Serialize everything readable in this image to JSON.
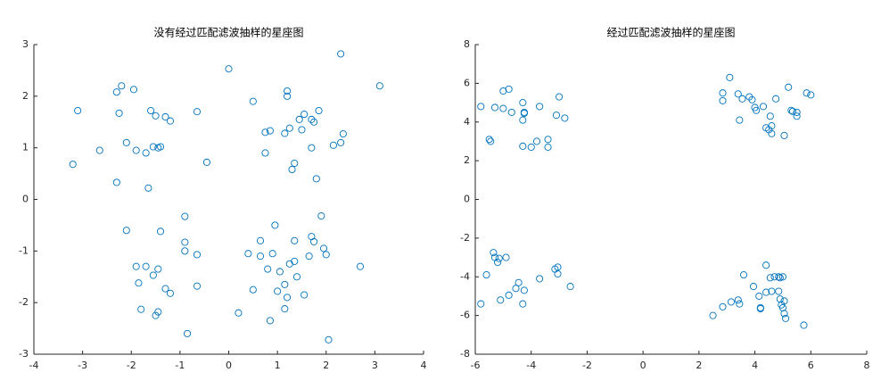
{
  "chart_data": [
    {
      "type": "scatter",
      "title": "没有经过匹配滤波抽样的星座图",
      "color": "#0072bd",
      "x": [
        -3.2,
        -3.1,
        -2.65,
        -2.3,
        -2.2,
        -2.25,
        -2.3,
        -2.1,
        -1.95,
        -1.9,
        -1.7,
        -1.65,
        -1.6,
        -1.55,
        -1.5,
        -1.45,
        -1.4,
        -1.3,
        -1.2,
        -0.65,
        -0.45,
        0.0,
        0.5,
        0.75,
        0.75,
        0.85,
        1.15,
        1.2,
        1.2,
        1.25,
        1.3,
        1.35,
        1.45,
        1.55,
        1.5,
        1.7,
        1.75,
        1.7,
        1.8,
        1.85,
        2.15,
        2.3,
        2.35,
        2.3,
        3.1,
        -2.1,
        -1.9,
        -1.85,
        -1.8,
        -1.7,
        -1.55,
        -1.5,
        -1.45,
        -1.45,
        -1.4,
        -1.3,
        -1.2,
        -0.9,
        -0.9,
        -0.9,
        -0.85,
        -0.65,
        -0.65,
        0.2,
        0.4,
        0.5,
        0.65,
        0.65,
        0.8,
        0.85,
        0.9,
        0.95,
        1.0,
        1.05,
        1.15,
        1.15,
        1.2,
        1.25,
        1.35,
        1.4,
        1.55,
        1.65,
        1.7,
        1.75,
        1.9,
        1.95,
        2.0,
        2.05,
        2.7,
        1.35
      ],
      "values": [
        0.68,
        1.72,
        0.95,
        2.08,
        2.2,
        1.67,
        0.33,
        1.1,
        2.13,
        0.95,
        0.9,
        0.22,
        1.72,
        1.02,
        1.62,
        1.0,
        1.02,
        1.6,
        1.52,
        1.7,
        0.72,
        2.53,
        1.9,
        1.3,
        0.9,
        1.33,
        1.28,
        2.0,
        2.1,
        1.38,
        0.58,
        0.7,
        1.55,
        1.65,
        1.35,
        1.55,
        1.5,
        1.0,
        0.4,
        1.72,
        1.05,
        1.1,
        1.27,
        2.82,
        2.2,
        -0.6,
        -1.3,
        -1.62,
        -2.13,
        -1.3,
        -1.47,
        -2.25,
        -1.35,
        -2.18,
        -0.62,
        -1.73,
        -1.82,
        -0.33,
        -0.83,
        -1.0,
        -2.6,
        -1.07,
        -1.68,
        -2.2,
        -1.05,
        -1.75,
        -0.8,
        -1.1,
        -1.35,
        -2.35,
        -1.05,
        -0.5,
        -1.78,
        -1.4,
        -1.65,
        -2.12,
        -1.9,
        -1.25,
        -0.8,
        -1.5,
        -1.85,
        -1.1,
        -0.72,
        -0.82,
        -0.32,
        -0.95,
        -1.07,
        -2.72,
        -1.3,
        -1.2
      ],
      "xlim": [
        -4,
        4
      ],
      "xticks": [
        -4,
        -3,
        -2,
        -1,
        0,
        1,
        2,
        3,
        4
      ],
      "ylim": [
        -3,
        3
      ],
      "yticks": [
        -3,
        -2,
        -1,
        0,
        1,
        2,
        3
      ]
    },
    {
      "type": "scatter",
      "title": "经过匹配滤波抽样的星座图",
      "color": "#0072bd",
      "x": [
        -5.8,
        -5.5,
        -5.45,
        -5.3,
        -5.0,
        -5.0,
        -4.8,
        -4.7,
        -4.3,
        -4.3,
        -4.25,
        -4.25,
        -4.3,
        -4.0,
        -3.8,
        -3.7,
        -3.4,
        -3.4,
        -3.1,
        -3.0,
        -2.8,
        2.85,
        2.85,
        3.1,
        3.4,
        3.45,
        3.55,
        3.8,
        3.9,
        4.0,
        4.05,
        4.3,
        4.4,
        4.5,
        4.55,
        4.6,
        4.6,
        4.75,
        5.05,
        5.2,
        5.3,
        5.35,
        5.5,
        5.5,
        5.85,
        6.0,
        -5.8,
        -5.6,
        -5.35,
        -5.3,
        -5.2,
        -5.15,
        -5.1,
        -4.9,
        -4.8,
        -4.55,
        -4.45,
        -4.25,
        -4.3,
        -3.7,
        -3.15,
        -3.05,
        -3.05,
        -2.6,
        2.5,
        2.85,
        3.15,
        3.4,
        3.45,
        3.6,
        3.95,
        4.15,
        4.2,
        4.2,
        4.4,
        4.4,
        4.55,
        4.6,
        4.7,
        4.85,
        4.9,
        4.9,
        4.95,
        5.0,
        5.05,
        5.1,
        5.05,
        5.75,
        4.85,
        5.0
      ],
      "values": [
        4.8,
        3.1,
        3.0,
        4.75,
        5.6,
        4.7,
        5.7,
        4.5,
        5.0,
        4.1,
        4.5,
        4.45,
        2.75,
        2.7,
        3.0,
        4.8,
        3.1,
        2.7,
        4.35,
        5.3,
        4.2,
        5.5,
        5.1,
        6.3,
        5.45,
        4.1,
        5.2,
        5.3,
        5.15,
        4.75,
        4.6,
        4.8,
        3.7,
        3.6,
        4.3,
        3.4,
        3.8,
        5.2,
        3.3,
        5.8,
        4.6,
        4.55,
        4.3,
        4.5,
        5.5,
        5.4,
        -5.4,
        -3.9,
        -2.75,
        -3.0,
        -3.25,
        -3.05,
        -5.2,
        -3.0,
        -4.95,
        -4.6,
        -4.3,
        -4.7,
        -5.4,
        -4.1,
        -3.6,
        -3.5,
        -3.85,
        -4.5,
        -6.0,
        -5.55,
        -5.3,
        -5.2,
        -5.4,
        -3.9,
        -4.5,
        -5.0,
        -5.6,
        -5.65,
        -4.8,
        -3.4,
        -4.05,
        -4.75,
        -4.0,
        -4.75,
        -4.05,
        -5.15,
        -5.45,
        -5.6,
        -5.25,
        -6.15,
        -5.9,
        -6.5,
        -4.0,
        -4.0
      ],
      "xlim": [
        -6,
        8
      ],
      "xticks": [
        -6,
        -4,
        -2,
        0,
        2,
        4,
        6,
        8
      ],
      "ylim": [
        -8,
        8
      ],
      "yticks": [
        -8,
        -6,
        -4,
        -2,
        0,
        2,
        4,
        6,
        8
      ]
    }
  ]
}
